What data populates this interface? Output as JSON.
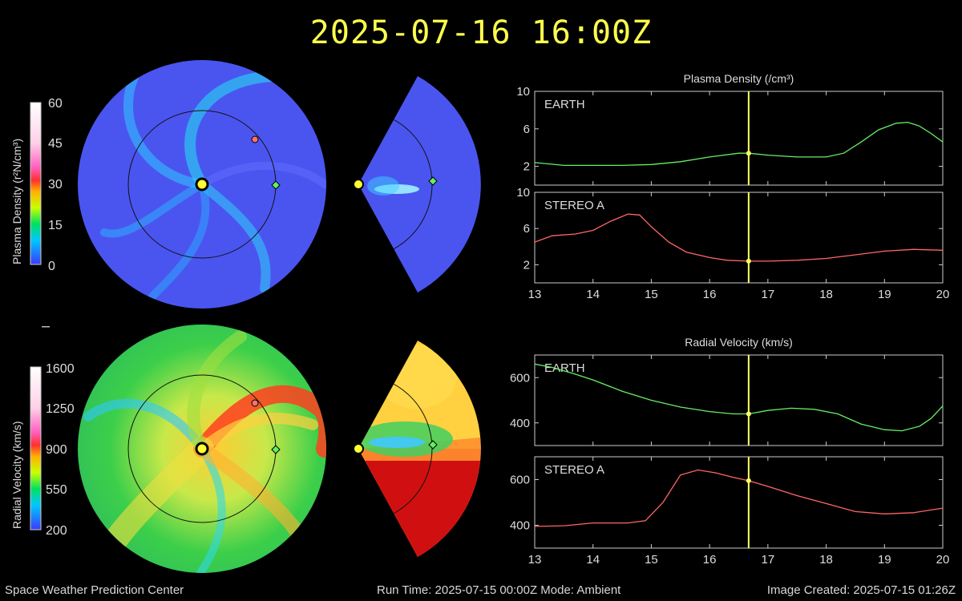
{
  "timestamp": "2025-07-16 16:00Z",
  "footer": {
    "org": "Space Weather Prediction Center",
    "run": "Run Time: 2025-07-15 00:00Z  Mode: Ambient",
    "created": "Image Created: 2025-07-15 01:26Z"
  },
  "colorbars": {
    "density": {
      "label": "Plasma Density (r²N/cm³)",
      "ticks": [
        "60",
        "45",
        "30",
        "15",
        "0"
      ]
    },
    "velocity": {
      "label": "Radial Velocity (km/s)",
      "ticks": [
        "1600",
        "1250",
        "900",
        "550",
        "200"
      ]
    }
  },
  "colors": {
    "earth": "#66ee66",
    "stereo": "#ff6666",
    "marker": "#ffff66",
    "title": "#ffff4d"
  },
  "chart_data": [
    {
      "type": "line",
      "title": "Plasma Density (/cm³)",
      "panel": "EARTH",
      "xlim": [
        13,
        20
      ],
      "ylim": [
        0,
        10
      ],
      "xticks": [
        "13",
        "14",
        "15",
        "16",
        "17",
        "18",
        "19",
        "20"
      ],
      "yticks": [
        "10",
        "6",
        "2"
      ],
      "marker_x": 16.67,
      "series": [
        {
          "name": "EARTH",
          "x": [
            13,
            13.5,
            14,
            14.5,
            15,
            15.5,
            16,
            16.5,
            16.67,
            17,
            17.5,
            18,
            18.3,
            18.6,
            18.9,
            19.2,
            19.4,
            19.6,
            19.8,
            20
          ],
          "y": [
            2.4,
            2.1,
            2.1,
            2.1,
            2.2,
            2.5,
            3.0,
            3.4,
            3.4,
            3.2,
            3.0,
            3.0,
            3.4,
            4.6,
            5.9,
            6.6,
            6.7,
            6.3,
            5.5,
            4.6
          ]
        }
      ]
    },
    {
      "type": "line",
      "panel": "STEREO A",
      "xlim": [
        13,
        20
      ],
      "ylim": [
        0,
        10
      ],
      "xticks": [
        "13",
        "14",
        "15",
        "16",
        "17",
        "18",
        "19",
        "20"
      ],
      "yticks": [
        "10",
        "6",
        "2"
      ],
      "marker_x": 16.67,
      "series": [
        {
          "name": "STEREO A",
          "x": [
            13,
            13.3,
            13.7,
            14,
            14.3,
            14.6,
            14.8,
            15,
            15.3,
            15.6,
            16,
            16.3,
            16.67,
            17,
            17.5,
            18,
            18.5,
            19,
            19.5,
            20
          ],
          "y": [
            4.5,
            5.2,
            5.4,
            5.8,
            6.8,
            7.6,
            7.5,
            6.2,
            4.5,
            3.4,
            2.8,
            2.5,
            2.4,
            2.4,
            2.5,
            2.7,
            3.1,
            3.5,
            3.7,
            3.6
          ]
        }
      ]
    },
    {
      "type": "line",
      "title": "Radial Velocity (km/s)",
      "panel": "EARTH",
      "xlim": [
        13,
        20
      ],
      "ylim": [
        300,
        700
      ],
      "xticks": [
        "13",
        "14",
        "15",
        "16",
        "17",
        "18",
        "19",
        "20"
      ],
      "yticks": [
        "600",
        "400"
      ],
      "marker_x": 16.67,
      "series": [
        {
          "name": "EARTH",
          "x": [
            13,
            13.3,
            13.7,
            14,
            14.5,
            15,
            15.5,
            16,
            16.4,
            16.67,
            17,
            17.4,
            17.8,
            18.2,
            18.6,
            19,
            19.3,
            19.6,
            19.8,
            20
          ],
          "y": [
            660,
            645,
            615,
            590,
            540,
            500,
            470,
            450,
            440,
            440,
            455,
            465,
            460,
            440,
            395,
            370,
            365,
            385,
            420,
            475
          ]
        }
      ]
    },
    {
      "type": "line",
      "panel": "STEREO A",
      "xlim": [
        13,
        20
      ],
      "ylim": [
        300,
        700
      ],
      "xticks": [
        "13",
        "14",
        "15",
        "16",
        "17",
        "18",
        "19",
        "20"
      ],
      "yticks": [
        "600",
        "400"
      ],
      "marker_x": 16.67,
      "series": [
        {
          "name": "STEREO A",
          "x": [
            13,
            13.5,
            14,
            14.6,
            14.9,
            15.2,
            15.5,
            15.8,
            16.1,
            16.4,
            16.67,
            17,
            17.5,
            18,
            18.5,
            19,
            19.5,
            20
          ],
          "y": [
            395,
            398,
            410,
            410,
            420,
            500,
            620,
            642,
            630,
            610,
            595,
            570,
            530,
            495,
            460,
            450,
            455,
            475
          ]
        }
      ]
    }
  ]
}
